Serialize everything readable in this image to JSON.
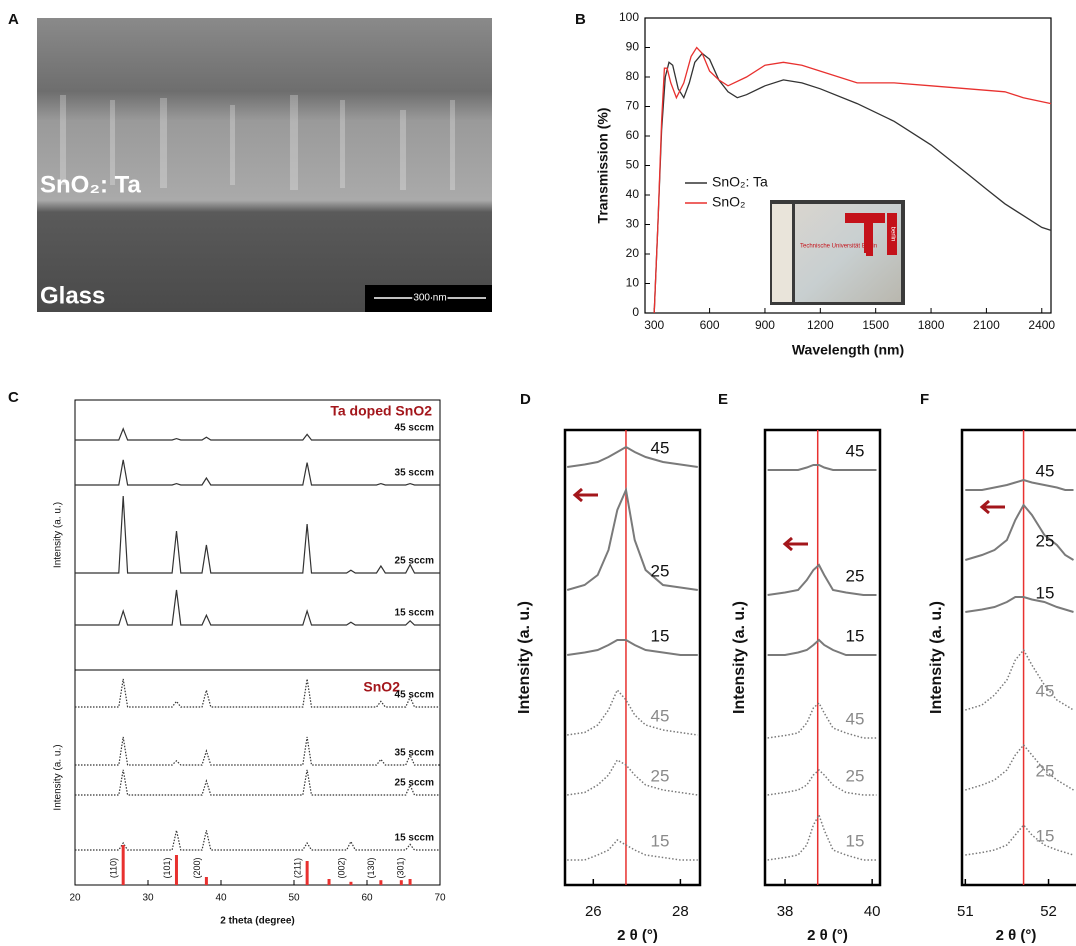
{
  "image_panel": {
    "panel": "A",
    "labels": [
      "SnO₂: Ta",
      "Glass"
    ],
    "scale_bar": "300 nm"
  },
  "chart_data": [
    {
      "panel": "B",
      "type": "line",
      "xlabel": "Wavelength (nm)",
      "ylabel": "Transmission (%)",
      "xlim": [
        250,
        2450
      ],
      "xticks": [
        300,
        600,
        900,
        1200,
        1500,
        1800,
        2100,
        2400
      ],
      "ylim": [
        0,
        100
      ],
      "yticks": [
        0,
        10,
        20,
        30,
        40,
        50,
        60,
        70,
        80,
        90,
        100
      ],
      "inset_texts": [
        "Technische Universität Berlin",
        "berlin"
      ],
      "series": [
        {
          "name": "SnO₂: Ta",
          "color": "#333333",
          "x": [
            300,
            320,
            340,
            360,
            380,
            400,
            430,
            460,
            490,
            520,
            560,
            600,
            650,
            700,
            750,
            800,
            900,
            1000,
            1100,
            1200,
            1400,
            1600,
            1800,
            2000,
            2100,
            2200,
            2300,
            2400,
            2450
          ],
          "values": [
            0,
            30,
            62,
            80,
            85,
            84,
            76,
            73,
            78,
            85,
            88,
            86,
            79,
            75,
            73,
            74,
            77,
            79,
            78,
            76,
            71,
            65,
            57,
            47,
            42,
            37,
            33,
            29,
            28
          ]
        },
        {
          "name": "SnO₂",
          "color": "#e8312f",
          "x": [
            300,
            320,
            340,
            355,
            370,
            390,
            420,
            460,
            500,
            530,
            560,
            600,
            650,
            700,
            800,
            900,
            1000,
            1100,
            1200,
            1400,
            1600,
            1800,
            2000,
            2200,
            2300,
            2450
          ],
          "values": [
            0,
            30,
            65,
            83,
            83,
            78,
            73,
            78,
            87,
            90,
            88,
            82,
            79,
            77,
            80,
            84,
            85,
            84,
            82,
            78,
            78,
            77,
            76,
            75,
            73,
            71
          ]
        }
      ]
    },
    {
      "panel": "C",
      "type": "xrd_stack",
      "xlabel": "2 theta (degree)",
      "xlim": [
        20,
        70
      ],
      "xticks": [
        20,
        30,
        40,
        50,
        60,
        70
      ],
      "color": "#333333",
      "x": [
        20,
        25,
        26,
        26.6,
        27.2,
        28,
        33.3,
        33.9,
        34.5,
        37.4,
        38,
        38.6,
        51.2,
        51.8,
        52.4,
        57.2,
        57.8,
        58.4,
        61.3,
        61.9,
        62.5,
        65.3,
        65.9,
        66.5,
        70
      ],
      "groups": [
        {
          "title": "Ta doped SnO2",
          "ylabel": "Intensity (a. u.)",
          "style": "solid",
          "series": [
            {
              "name": "45 sccm",
              "values": [
                0,
                0,
                0,
                8,
                0,
                0,
                0,
                1,
                0,
                0,
                2,
                0,
                0,
                4,
                0,
                0,
                0,
                0,
                0,
                0,
                0,
                0,
                0,
                0,
                0
              ]
            },
            {
              "name": "35 sccm",
              "values": [
                0,
                0,
                0,
                18,
                0,
                0,
                0,
                1,
                0,
                0,
                5,
                0,
                0,
                16,
                0,
                0,
                0,
                0,
                0,
                1,
                0,
                0,
                1,
                0,
                0
              ]
            },
            {
              "name": "25 sccm",
              "values": [
                0,
                0,
                0,
                55,
                0,
                0,
                0,
                30,
                0,
                0,
                20,
                0,
                0,
                35,
                0,
                0,
                2,
                0,
                0,
                5,
                0,
                0,
                6,
                0,
                0
              ]
            },
            {
              "name": "15 sccm",
              "values": [
                0,
                0,
                0,
                10,
                0,
                0,
                0,
                25,
                0,
                0,
                7,
                0,
                0,
                10,
                0,
                0,
                2,
                0,
                0,
                0,
                0,
                0,
                3,
                0,
                0
              ]
            }
          ]
        },
        {
          "title": "SnO2",
          "ylabel": "Intensity (a. u.)",
          "style": "dotted",
          "series": [
            {
              "name": "45 sccm",
              "values": [
                0,
                0,
                0,
                20,
                0,
                0,
                0,
                4,
                0,
                0,
                12,
                0,
                0,
                20,
                0,
                0,
                0,
                0,
                0,
                4,
                0,
                0,
                7,
                0,
                0
              ]
            },
            {
              "name": "35 sccm",
              "values": [
                0,
                0,
                0,
                20,
                0,
                0,
                0,
                3,
                0,
                0,
                10,
                0,
                0,
                20,
                0,
                0,
                0,
                0,
                0,
                4,
                0,
                0,
                7,
                0,
                0
              ]
            },
            {
              "name": "25 sccm",
              "values": [
                0,
                0,
                0,
                18,
                0,
                0,
                0,
                0,
                0,
                0,
                10,
                0,
                0,
                18,
                0,
                0,
                0,
                0,
                0,
                0,
                0,
                0,
                7,
                0,
                0
              ]
            },
            {
              "name": "15 sccm",
              "values": [
                0,
                0,
                0,
                5,
                0,
                0,
                0,
                14,
                0,
                0,
                14,
                0,
                0,
                5,
                0,
                0,
                6,
                0,
                0,
                0,
                0,
                0,
                4,
                0,
                0
              ]
            }
          ]
        }
      ],
      "reference": {
        "color": "#e8312f",
        "x": [
          26.6,
          33.9,
          38.0,
          51.8,
          54.8,
          57.8,
          61.9,
          64.7,
          65.9
        ],
        "values": [
          100,
          75,
          20,
          60,
          15,
          8,
          12,
          12,
          15
        ],
        "labels": [
          "(110)",
          "(101)",
          "(200)",
          "(211)",
          null,
          "(002)",
          "(130)",
          null,
          "(301)"
        ]
      }
    },
    {
      "panel": "D",
      "type": "xrd_zoom",
      "xlabel": "2 θ (°)",
      "ylabel": "Intensity (a. u.)",
      "xlim": [
        25.35,
        28.45
      ],
      "xticks": [
        26,
        28
      ],
      "reference_line": 26.75,
      "reference_color": "#e8312f",
      "x": [
        25.4,
        25.8,
        26.1,
        26.35,
        26.55,
        26.75,
        26.95,
        27.2,
        27.6,
        28,
        28.4
      ],
      "series": [
        {
          "name": "45",
          "style": "solid",
          "values": [
            0,
            0.5,
            1,
            2,
            3,
            4,
            3,
            2,
            1,
            0.5,
            0
          ]
        },
        {
          "name": "25",
          "style": "solid",
          "values": [
            0,
            1,
            3,
            8,
            16,
            20,
            10,
            4,
            1,
            0.5,
            0
          ]
        },
        {
          "name": "15",
          "style": "solid",
          "values": [
            0,
            0.5,
            1,
            2,
            3,
            3,
            2,
            1,
            0.5,
            0,
            0
          ]
        },
        {
          "name": "45",
          "style": "dotted",
          "values": [
            0,
            0.5,
            2,
            5,
            9,
            7,
            4,
            2,
            1,
            0.5,
            0
          ]
        },
        {
          "name": "25",
          "style": "dotted",
          "values": [
            0,
            0.5,
            2,
            4,
            7,
            6,
            4,
            2,
            1,
            0.5,
            0
          ]
        },
        {
          "name": "15",
          "style": "dotted",
          "values": [
            0,
            0,
            1,
            2,
            4,
            3,
            2,
            1,
            0.5,
            0,
            0
          ]
        }
      ]
    },
    {
      "panel": "E",
      "type": "xrd_zoom",
      "xlabel": "2 θ (°)",
      "ylabel": "Intensity (a. u.)",
      "xlim": [
        37.54,
        40.18
      ],
      "xticks": [
        38,
        40
      ],
      "reference_line": 38.75,
      "reference_color": "#e8312f",
      "x": [
        37.6,
        38.0,
        38.3,
        38.5,
        38.65,
        38.78,
        38.9,
        39.1,
        39.4,
        39.8,
        40.1
      ],
      "series": [
        {
          "name": "45",
          "style": "solid",
          "values": [
            0,
            0,
            0,
            0.5,
            1,
            1,
            0.5,
            0,
            0,
            0,
            0
          ]
        },
        {
          "name": "25",
          "style": "solid",
          "values": [
            0,
            0.5,
            1,
            3,
            5,
            6,
            4,
            1,
            0.5,
            0,
            0
          ]
        },
        {
          "name": "15",
          "style": "solid",
          "values": [
            0,
            0,
            0.5,
            1,
            2,
            3,
            2,
            1,
            0,
            0,
            0
          ]
        },
        {
          "name": "45",
          "style": "dotted",
          "values": [
            0,
            0.5,
            1,
            3,
            6,
            7,
            5,
            2,
            1,
            0,
            0
          ]
        },
        {
          "name": "25",
          "style": "dotted",
          "values": [
            0,
            0.5,
            1,
            2,
            4,
            5,
            4,
            2,
            0.5,
            0,
            0
          ]
        },
        {
          "name": "15",
          "style": "dotted",
          "values": [
            0,
            0.5,
            1,
            3,
            7,
            9,
            6,
            2,
            1,
            0,
            0
          ]
        }
      ]
    },
    {
      "panel": "F",
      "type": "xrd_zoom",
      "xlabel": "2 θ (°)",
      "ylabel": "Intensity (a. u.)",
      "xlim": [
        50.96,
        52.33
      ],
      "xticks": [
        51,
        52
      ],
      "reference_line": 51.7,
      "reference_color": "#e8312f",
      "x": [
        51.0,
        51.2,
        51.35,
        51.5,
        51.6,
        51.7,
        51.8,
        51.95,
        52.1,
        52.2,
        52.3
      ],
      "series": [
        {
          "name": "45",
          "style": "solid",
          "values": [
            0,
            0,
            0.5,
            1,
            1.5,
            2,
            1.5,
            1,
            0.5,
            0,
            0
          ]
        },
        {
          "name": "25",
          "style": "solid",
          "values": [
            0,
            1,
            2,
            4,
            8,
            11,
            9,
            5,
            3,
            1,
            0
          ]
        },
        {
          "name": "15",
          "style": "solid",
          "values": [
            0,
            0.5,
            1,
            2,
            3,
            3,
            2.5,
            2,
            1,
            0.5,
            0
          ]
        },
        {
          "name": "45",
          "style": "dotted",
          "values": [
            0,
            1,
            3,
            6,
            10,
            12,
            9,
            5,
            2,
            1,
            0
          ]
        },
        {
          "name": "25",
          "style": "dotted",
          "values": [
            0,
            1,
            2,
            4,
            7,
            9,
            7,
            4,
            2,
            1,
            0
          ]
        },
        {
          "name": "15",
          "style": "dotted",
          "values": [
            0,
            0.5,
            1,
            2,
            4,
            6,
            4,
            2,
            1,
            0.5,
            0
          ]
        }
      ]
    }
  ]
}
